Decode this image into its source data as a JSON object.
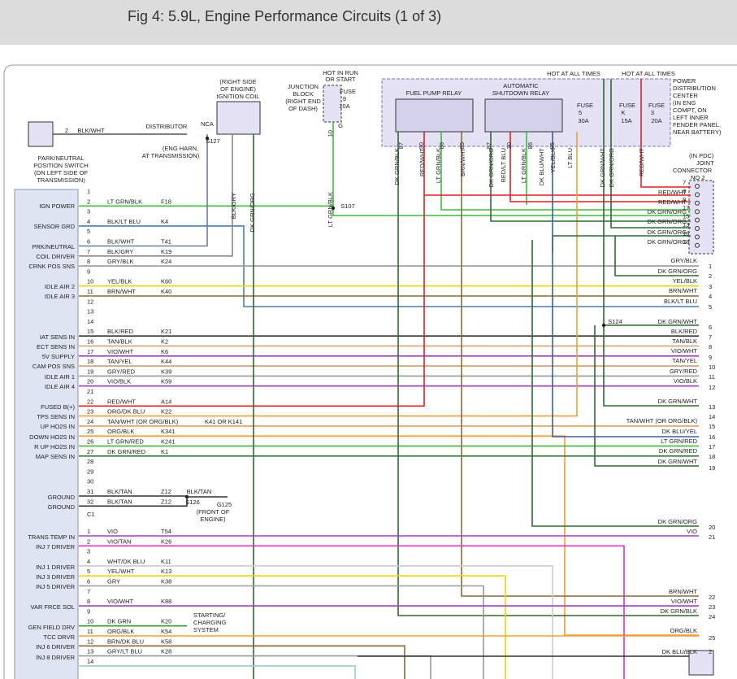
{
  "header": {
    "title": "Fig 4: 5.9L, Engine Performance Circuits (1 of 3)"
  },
  "diagram": {
    "labels": [
      "PARK/NEUTRAL",
      "POSITION SWITCH",
      "(ON LEFT SIDE OF",
      "TRANSMISSION)",
      "2",
      "BLK/WHT",
      "DISTRIBUTOR",
      "NCA",
      "S127",
      "(ENG HARN,",
      "AT TRANSMISSION)",
      "(RIGHT SIDE",
      "OF ENGINE)",
      "IGNITION COIL",
      "BLK/GRY",
      "DK GRN/ORG",
      "HOT IN RUN",
      "OR START",
      "JUNCTION",
      "BLOCK",
      "(RIGHT END",
      "OF DASH)",
      "FUSE",
      "9",
      "10A",
      "10",
      "G",
      "LT GRN/BLK",
      "S107",
      "HOT AT ALL TIMES",
      "HOT AT ALL TIMES",
      "POWER",
      "DISTRIBUTION",
      "CENTER",
      "(IN ENG",
      "COMPT, ON",
      "LEFT INNER",
      "FENDER PANEL,",
      "NEAR BATTERY)",
      "FUEL PUMP RELAY",
      "AUTOMATIC",
      "SHUTDOWN RELAY",
      "FUSE",
      "5",
      "30A",
      "FUSE",
      "K",
      "15A",
      "FUSE",
      "3",
      "20A",
      "87",
      "30",
      "86",
      "85",
      "87",
      "30",
      "86",
      "85",
      "DK GRN/BLK",
      "RED/WHT",
      "LT GRN/BLK",
      "BRN/WHT",
      "DK GRN/ORG",
      "RED/LT BLU",
      "LT GRN/BLK",
      "DK BLU/WHT",
      "YEL/BLK",
      "LT BLU",
      "DK GRN/WHT",
      "DK GRN/ORG",
      "RED/WHT",
      "(IN PDC)",
      "JOINT",
      "CONNECTOR",
      "NO 2",
      "S124",
      "K41 OR K141",
      "BLK/TAN",
      "S126",
      "G125",
      "(FRONT OF",
      "ENGINE)",
      "STARTING/",
      "CHARGING",
      "SYSTEM",
      "C1"
    ],
    "functions": [
      "IGN POWER",
      "SENSOR GRD",
      "PRK/NEUTRAL",
      "COIL DRIVER",
      "CRNK POS SNS",
      "IDLE AIR 2",
      "IDLE AIR 3",
      "IAT SENS IN",
      "ECT SENS IN",
      "5V SUPPLY",
      "CAM POS SNS",
      "IDLE AIR 1",
      "IDLE AIR 4",
      "FUSED B(+)",
      "TPS SENS IN",
      "UP HO2S IN",
      "DOWN HO2S IN",
      "R UP HO2S IN",
      "MAP SENS IN",
      "GROUND",
      "GROUND",
      "TRANS TEMP IN",
      "INJ 7 DRIVER",
      "INJ 1 DRIVER",
      "INJ 3 DRIVER",
      "INJ 5 DRIVER",
      "VAR FRCE SOL",
      "GEN FIELD DRV",
      "TCC DRVR",
      "INJ 6 DRIVER",
      "INJ 8 DRIVER"
    ],
    "connector_a": [
      {
        "pin": "1"
      },
      {
        "pin": "2",
        "wire": "LT GRN/BLK",
        "circuit": "F18"
      },
      {
        "pin": "3"
      },
      {
        "pin": "4",
        "wire": "BLK/LT BLU",
        "circuit": "K4"
      },
      {
        "pin": "5"
      },
      {
        "pin": "6",
        "wire": "BLK/WHT",
        "circuit": "T41"
      },
      {
        "pin": "7",
        "wire": "BLK/GRY",
        "circuit": "K19"
      },
      {
        "pin": "8",
        "wire": "GRY/BLK",
        "circuit": "K24"
      },
      {
        "pin": "9"
      },
      {
        "pin": "10",
        "wire": "YEL/BLK",
        "circuit": "K60"
      },
      {
        "pin": "11",
        "wire": "BRN/WHT",
        "circuit": "K40"
      },
      {
        "pin": "12"
      },
      {
        "pin": "13"
      },
      {
        "pin": "14"
      },
      {
        "pin": "15",
        "wire": "BLK/RED",
        "circuit": "K21"
      },
      {
        "pin": "16",
        "wire": "TAN/BLK",
        "circuit": "K2"
      },
      {
        "pin": "17",
        "wire": "VIO/WHT",
        "circuit": "K6"
      },
      {
        "pin": "18",
        "wire": "TAN/YEL",
        "circuit": "K44"
      },
      {
        "pin": "19",
        "wire": "GRY/RED",
        "circuit": "K39"
      },
      {
        "pin": "20",
        "wire": "VIO/BLK",
        "circuit": "K59"
      },
      {
        "pin": "21"
      },
      {
        "pin": "22",
        "wire": "RED/WHT",
        "circuit": "A14"
      },
      {
        "pin": "23",
        "wire": "ORG/DK BLU",
        "circuit": "K22"
      },
      {
        "pin": "24",
        "wire": "TAN/WHT (OR ORG/BLK)"
      },
      {
        "pin": "25",
        "wire": "ORG/BLK",
        "circuit": "K341"
      },
      {
        "pin": "26",
        "wire": "LT GRN/RED",
        "circuit": "K241"
      },
      {
        "pin": "27",
        "wire": "DK GRN/RED",
        "circuit": "K1"
      },
      {
        "pin": "28"
      },
      {
        "pin": "29"
      },
      {
        "pin": "30"
      },
      {
        "pin": "31",
        "wire": "BLK/TAN",
        "circuit": "Z12"
      },
      {
        "pin": "32",
        "wire": "BLK/TAN",
        "circuit": "Z12"
      }
    ],
    "connector_c1": [
      {
        "pin": "1",
        "wire": "VIO",
        "circuit": "T54"
      },
      {
        "pin": "2",
        "wire": "VIO/TAN",
        "circuit": "K26"
      },
      {
        "pin": "3"
      },
      {
        "pin": "4",
        "wire": "WHT/DK BLU",
        "circuit": "K11"
      },
      {
        "pin": "5",
        "wire": "YEL/WHT",
        "circuit": "K13"
      },
      {
        "pin": "6",
        "wire": "GRY",
        "circuit": "K38"
      },
      {
        "pin": "7"
      },
      {
        "pin": "8",
        "wire": "VIO/WHT",
        "circuit": "K88"
      },
      {
        "pin": "9"
      },
      {
        "pin": "10",
        "wire": "DK GRN",
        "circuit": "K20"
      },
      {
        "pin": "11",
        "wire": "ORG/BLK",
        "circuit": "K54"
      },
      {
        "pin": "12",
        "wire": "BRN/DK BLU",
        "circuit": "K58"
      },
      {
        "pin": "13",
        "wire": "GRY/LT BLU",
        "circuit": "K28"
      },
      {
        "pin": "14"
      }
    ],
    "joint_wires": [
      "RED/WHT",
      "RED/WHT",
      "DK GRN/ORG",
      "DK GRN/ORG",
      "DK GRN/ORG",
      "DK GRN/ORG"
    ],
    "joint_pins": [
      "7",
      "8",
      "9",
      "17",
      "15",
      "13",
      "16",
      "18"
    ],
    "right_wires": [
      "GRY/BLK",
      "DK GRN/ORG",
      "YEL/BLK",
      "BRN/WHT",
      "BLK/LT BLU",
      "DK GRN/WHT",
      "BLK/RED",
      "TAN/BLK",
      "VIO/WHT",
      "TAN/YEL",
      "GRY/RED",
      "VIO/BLK",
      "DK GRN/WHT",
      "TAN/WHT (OR ORG/BLK)",
      "DK BLU/YEL",
      "LT GRN/RED",
      "DK GRN/RED",
      "DK GRN/WHT",
      "DK GRN/ORG",
      "VIO",
      "BRN/WHT",
      "VIO/WHT",
      "DK GRN/BLK",
      "ORG/BLK",
      "DK BLU/BLK"
    ],
    "right_pins": [
      "1",
      "2",
      "3",
      "4",
      "5",
      "6",
      "7",
      "8",
      "9",
      "10",
      "11",
      "12",
      "13",
      "14",
      "15",
      "16",
      "17",
      "18",
      "19",
      "20",
      "21",
      "22",
      "23",
      "24",
      "25",
      "2"
    ]
  }
}
